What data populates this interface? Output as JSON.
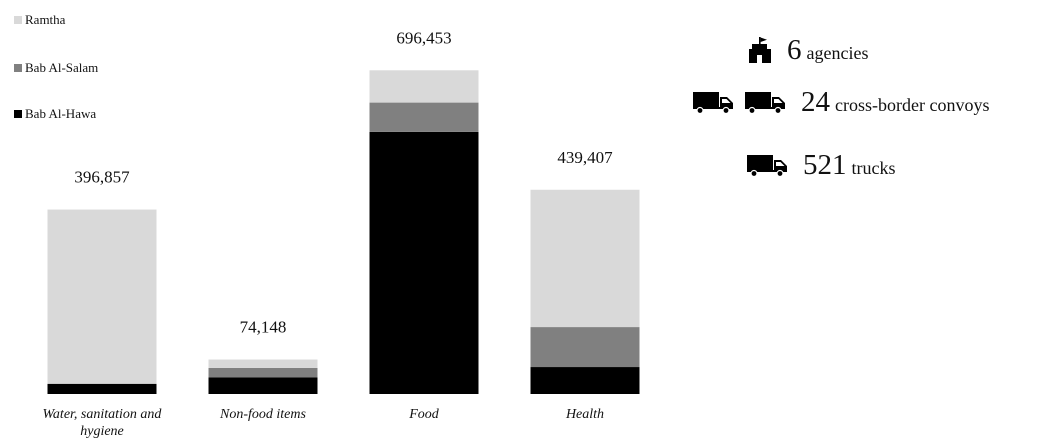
{
  "legend": [
    {
      "label": "Ramtha",
      "color": "#d9d9d9"
    },
    {
      "label": "Bab Al-Salam",
      "color": "#808080"
    },
    {
      "label": "Bab Al-Hawa",
      "color": "#000000"
    }
  ],
  "stats": [
    {
      "value": "6",
      "label": "agencies",
      "icon": "office-building-icon",
      "icon_count": 1
    },
    {
      "value": "24",
      "label": "cross-border convoys",
      "icon": "truck-icon",
      "icon_count": 2
    },
    {
      "value": "521",
      "label": "trucks",
      "icon": "truck-icon",
      "icon_count": 1
    }
  ],
  "chart_data": {
    "type": "bar",
    "stacked": true,
    "title": "",
    "xlabel": "",
    "ylabel": "",
    "ylim": [
      0,
      710000
    ],
    "categories": [
      "Water, sanitation and hygiene",
      "Non-food items",
      "Food",
      "Health"
    ],
    "totals": [
      396857,
      74148,
      696453,
      439407
    ],
    "total_labels": [
      "396,857",
      "74,148",
      "696,453",
      "439,407"
    ],
    "series": [
      {
        "name": "Bab Al-Hawa",
        "color": "#000000",
        "values": [
          22000,
          36000,
          564000,
          58000
        ]
      },
      {
        "name": "Bab Al-Salam",
        "color": "#808080",
        "values": [
          0,
          20000,
          63000,
          86000
        ]
      },
      {
        "name": "Ramtha",
        "color": "#d9d9d9",
        "values": [
          374857,
          18148,
          69453,
          295407
        ]
      }
    ],
    "grid": false,
    "legend_position": "top-left"
  }
}
